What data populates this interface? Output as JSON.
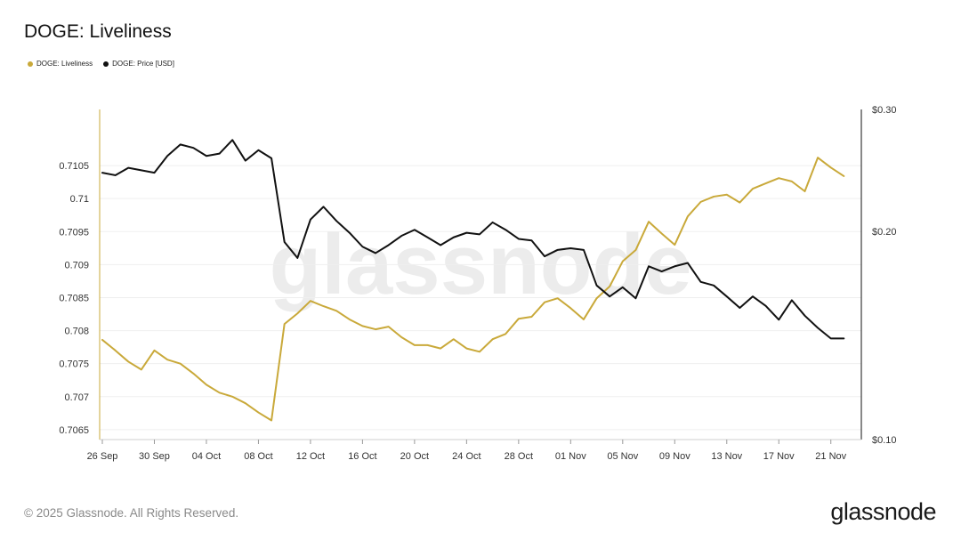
{
  "title": "DOGE: Liveliness",
  "footer": "© 2025 Glassnode. All Rights Reserved.",
  "brand": "glassnode",
  "watermark": "glassnode",
  "colors": {
    "liveliness": "#c9a93a",
    "price": "#111111",
    "grid": "#efefef"
  },
  "legend": [
    {
      "label": "DOGE: Liveliness",
      "color": "#c9a93a"
    },
    {
      "label": "DOGE: Price [USD]",
      "color": "#111111"
    }
  ],
  "chart_data": {
    "type": "line",
    "title": "DOGE: Liveliness",
    "x_tick_labels": [
      "26 Sep",
      "30 Sep",
      "04 Oct",
      "08 Oct",
      "12 Oct",
      "16 Oct",
      "20 Oct",
      "24 Oct",
      "28 Oct",
      "01 Nov",
      "05 Nov",
      "09 Nov",
      "13 Nov",
      "17 Nov",
      "21 Nov"
    ],
    "x": [
      "2025-09-26",
      "2025-09-27",
      "2025-09-28",
      "2025-09-29",
      "2025-09-30",
      "2025-10-01",
      "2025-10-02",
      "2025-10-03",
      "2025-10-04",
      "2025-10-05",
      "2025-10-06",
      "2025-10-07",
      "2025-10-08",
      "2025-10-09",
      "2025-10-10",
      "2025-10-11",
      "2025-10-12",
      "2025-10-13",
      "2025-10-14",
      "2025-10-15",
      "2025-10-16",
      "2025-10-17",
      "2025-10-18",
      "2025-10-19",
      "2025-10-20",
      "2025-10-21",
      "2025-10-22",
      "2025-10-23",
      "2025-10-24",
      "2025-10-25",
      "2025-10-26",
      "2025-10-27",
      "2025-10-28",
      "2025-10-29",
      "2025-10-30",
      "2025-10-31",
      "2025-11-01",
      "2025-11-02",
      "2025-11-03",
      "2025-11-04",
      "2025-11-05",
      "2025-11-06",
      "2025-11-07",
      "2025-11-08",
      "2025-11-09",
      "2025-11-10",
      "2025-11-11",
      "2025-11-12",
      "2025-11-13",
      "2025-11-14",
      "2025-11-15",
      "2025-11-16",
      "2025-11-17",
      "2025-11-18",
      "2025-11-19",
      "2025-11-20",
      "2025-11-21",
      "2025-11-22"
    ],
    "y_left_ticks": [
      "0.7065",
      "0.707",
      "0.7075",
      "0.708",
      "0.7085",
      "0.709",
      "0.7095",
      "0.71",
      "0.7105"
    ],
    "y_left_range": [
      0.70635,
      0.71135
    ],
    "y_right_ticks": [
      "$0.10",
      "$0.20",
      "$0.30"
    ],
    "y_right_range": [
      0.1,
      0.3
    ],
    "y_right_scale": "log",
    "grid": true,
    "legend_position": "top-left",
    "series": [
      {
        "name": "DOGE: Liveliness",
        "axis": "left",
        "color": "#c9a93a",
        "values": [
          0.70786,
          0.7077,
          0.70753,
          0.70741,
          0.7077,
          0.70756,
          0.7075,
          0.70735,
          0.70718,
          0.70706,
          0.707,
          0.7069,
          0.70676,
          0.70664,
          0.7081,
          0.70826,
          0.70845,
          0.70837,
          0.7083,
          0.70817,
          0.70807,
          0.70802,
          0.70806,
          0.7079,
          0.70778,
          0.70778,
          0.70773,
          0.70787,
          0.70773,
          0.70768,
          0.70787,
          0.70795,
          0.70818,
          0.70821,
          0.70843,
          0.70849,
          0.70834,
          0.70817,
          0.70849,
          0.70867,
          0.70905,
          0.70922,
          0.70965,
          0.70947,
          0.7093,
          0.70973,
          0.70995,
          0.71003,
          0.71006,
          0.70994,
          0.71015,
          0.71023,
          0.71031,
          0.71026,
          0.71011,
          0.71062,
          0.71047,
          0.71034
        ]
      },
      {
        "name": "DOGE: Price [USD]",
        "axis": "right",
        "color": "#111111",
        "values": [
          0.243,
          0.241,
          0.247,
          0.245,
          0.243,
          0.257,
          0.267,
          0.264,
          0.257,
          0.259,
          0.271,
          0.253,
          0.262,
          0.255,
          0.193,
          0.183,
          0.208,
          0.217,
          0.207,
          0.199,
          0.19,
          0.186,
          0.191,
          0.197,
          0.201,
          0.196,
          0.191,
          0.196,
          0.199,
          0.198,
          0.206,
          0.201,
          0.195,
          0.194,
          0.184,
          0.188,
          0.189,
          0.188,
          0.167,
          0.161,
          0.166,
          0.16,
          0.178,
          0.175,
          0.178,
          0.18,
          0.169,
          0.167,
          0.161,
          0.155,
          0.161,
          0.156,
          0.149,
          0.159,
          0.151,
          0.145,
          0.14,
          0.14
        ]
      }
    ]
  }
}
